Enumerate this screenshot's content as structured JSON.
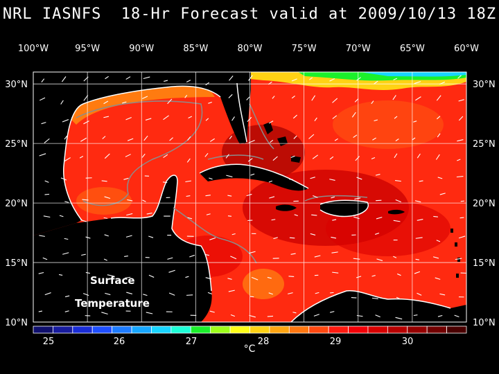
{
  "title": "NRL IASNFS  18-Hr Forecast valid at 2009/10/13 18Z",
  "annotation": {
    "line1": "Surface",
    "line2": "Temperature"
  },
  "map": {
    "lon_ticks": [
      "100°W",
      "95°W",
      "90°W",
      "85°W",
      "80°W",
      "75°W",
      "70°W",
      "65°W",
      "60°W"
    ],
    "lat_ticks": [
      "30°N",
      "25°N",
      "20°N",
      "15°N",
      "10°N"
    ],
    "lon_range": [
      -100,
      -60
    ],
    "lat_range": [
      10,
      31
    ]
  },
  "colorbar": {
    "labels": [
      "25",
      "26",
      "27",
      "28",
      "29",
      "30"
    ],
    "unit": "°C",
    "colors": [
      "#10106e",
      "#181c9e",
      "#1a2dd6",
      "#1f4fff",
      "#1e7cff",
      "#17a7ff",
      "#18d5ff",
      "#1dffd8",
      "#1bf02b",
      "#9eff1a",
      "#ffff18",
      "#ffd214",
      "#ffa512",
      "#ff7710",
      "#ff4810",
      "#ff1a10",
      "#f30008",
      "#d80000",
      "#b80000",
      "#960000",
      "#720000",
      "#4a0000"
    ]
  },
  "colors": {
    "land": "#000000",
    "grid": "#ffffff",
    "warm": "#ff2a10",
    "coast": "#ffffff",
    "isobath": "#8c8c8c"
  }
}
